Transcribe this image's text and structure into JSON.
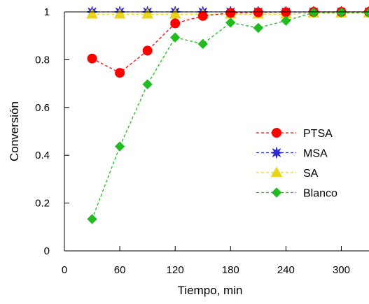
{
  "chart_data": {
    "type": "line",
    "xlabel": "Tiempo,  min",
    "ylabel": "Conversión",
    "xlim": [
      0,
      330
    ],
    "ylim": [
      0,
      1
    ],
    "xticks": [
      0,
      60,
      120,
      180,
      240,
      300
    ],
    "yticks": [
      0,
      0.2,
      0.4,
      0.6,
      0.8,
      1
    ],
    "ytick_labels": [
      "0",
      "0.2",
      "0.4",
      "0.6",
      "0.8",
      "1"
    ],
    "grid": false,
    "legend_position": "center-right",
    "series": [
      {
        "name": "PTSA",
        "color": "#ff0000",
        "marker": "circle",
        "x": [
          30,
          60,
          90,
          120,
          150,
          180,
          210,
          240,
          270,
          300,
          330
        ],
        "y": [
          0.805,
          0.745,
          0.838,
          0.952,
          0.983,
          0.996,
          0.998,
          0.999,
          1.0,
          1.0,
          1.0
        ]
      },
      {
        "name": "MSA",
        "color": "#2b2bd4",
        "marker": "star",
        "x": [
          30,
          60,
          90,
          120,
          150,
          180,
          210,
          240,
          270,
          300,
          330
        ],
        "y": [
          1.0,
          1.0,
          1.0,
          1.0,
          1.0,
          1.0,
          1.0,
          1.0,
          1.0,
          1.0,
          1.0
        ]
      },
      {
        "name": "SA",
        "color": "#e8d418",
        "marker": "triangle",
        "x": [
          30,
          60,
          90,
          120,
          150,
          180,
          210,
          240,
          270,
          300,
          330
        ],
        "y": [
          0.99,
          0.99,
          0.99,
          0.99,
          0.99,
          0.99,
          0.99,
          0.99,
          0.995,
          0.995,
          0.995
        ]
      },
      {
        "name": "Blanco",
        "color": "#22bb22",
        "marker": "diamond",
        "x": [
          30,
          60,
          90,
          120,
          150,
          180,
          210,
          240,
          270,
          300,
          330
        ],
        "y": [
          0.133,
          0.437,
          0.697,
          0.893,
          0.866,
          0.955,
          0.933,
          0.963,
          0.997,
          0.997,
          0.997
        ]
      }
    ]
  }
}
